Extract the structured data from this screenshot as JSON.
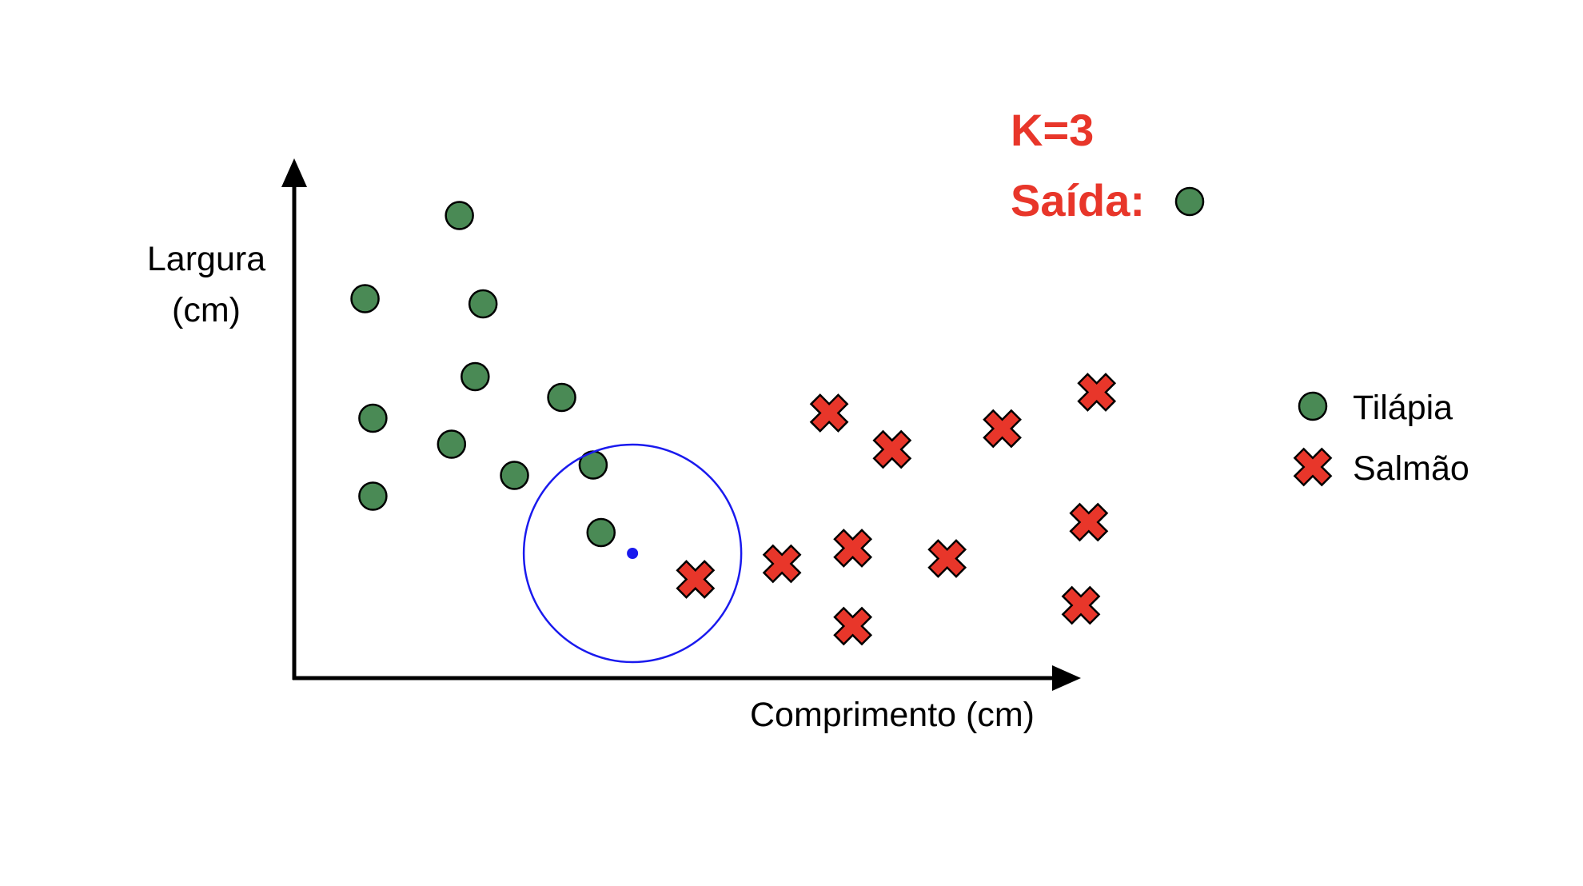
{
  "colors": {
    "tilapia_fill": "#4a8a55",
    "tilapia_stroke": "#000000",
    "salmao_fill": "#e8362a",
    "salmao_stroke": "#000000",
    "query": "#1a1aee",
    "axis": "#000000",
    "result_text": "#e8362a"
  },
  "annotation": {
    "k_label": "K=3",
    "output_label": "Saída:"
  },
  "axes": {
    "ylabel_line1": "Largura",
    "ylabel_line2": "(cm)",
    "xlabel": "Comprimento (cm)"
  },
  "legend": {
    "tilapia_label": "Tilápia",
    "salmao_label": "Salmão"
  },
  "chart_data": {
    "type": "scatter",
    "xlim": [
      0,
      100
    ],
    "ylim": [
      0,
      100
    ],
    "grid": false,
    "legend_position": "right",
    "series": [
      {
        "name": "Tilápia",
        "marker": "circle",
        "points": [
          [
            21,
            89
          ],
          [
            9,
            73
          ],
          [
            24,
            72
          ],
          [
            23,
            58
          ],
          [
            34,
            54
          ],
          [
            10,
            50
          ],
          [
            20,
            45
          ],
          [
            28,
            39
          ],
          [
            38,
            41
          ],
          [
            10,
            35
          ],
          [
            39,
            28
          ]
        ]
      },
      {
        "name": "Salmão",
        "marker": "x",
        "points": [
          [
            68,
            51
          ],
          [
            76,
            44
          ],
          [
            90,
            48
          ],
          [
            102,
            55
          ],
          [
            101,
            30
          ],
          [
            51,
            19
          ],
          [
            62,
            22
          ],
          [
            71,
            25
          ],
          [
            83,
            23
          ],
          [
            71,
            10
          ],
          [
            100,
            14
          ]
        ]
      }
    ],
    "query_point": [
      43,
      24
    ],
    "k": 3
  }
}
